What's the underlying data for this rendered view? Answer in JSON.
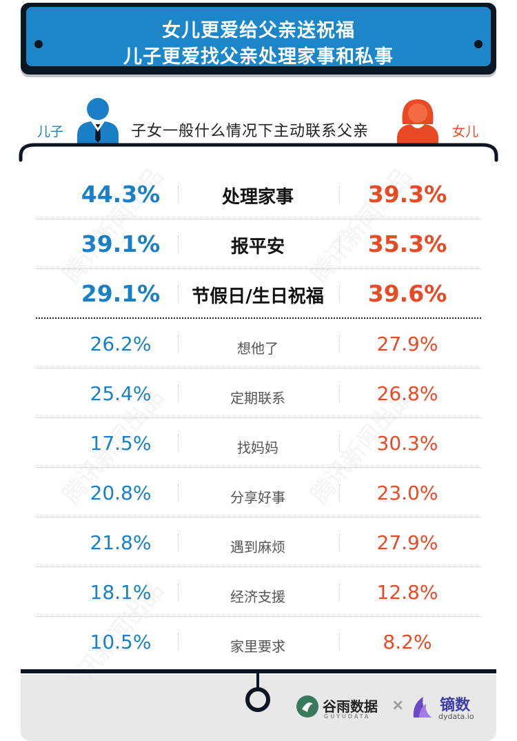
{
  "banner": {
    "line1": "女儿更爱给父亲送祝福",
    "line2": "儿子更爱找父亲处理家事和私事"
  },
  "header": {
    "son_label": "儿子",
    "daughter_label": "女儿",
    "subtitle": "子女一般什么情况下主动联系父亲"
  },
  "watermark": "腾讯新闻出品",
  "colors": {
    "son": "#1a7fc6",
    "daughter": "#e74a25",
    "banner": "#1c86c9",
    "frame": "#0c1622"
  },
  "chart_data": {
    "type": "table",
    "series": [
      {
        "name": "儿子",
        "values": [
          44.3,
          39.1,
          29.1,
          26.2,
          25.4,
          17.5,
          20.8,
          21.8,
          18.1,
          10.5
        ]
      },
      {
        "name": "女儿",
        "values": [
          39.3,
          35.3,
          39.6,
          27.9,
          26.8,
          30.3,
          23.0,
          27.9,
          12.8,
          8.2
        ]
      }
    ],
    "rows": [
      {
        "category": "处理家事",
        "son": "44.3%",
        "daughter": "39.3%",
        "highlight": true
      },
      {
        "category": "报平安",
        "son": "39.1%",
        "daughter": "35.3%",
        "highlight": true
      },
      {
        "category": "节假日/生日祝福",
        "son": "29.1%",
        "daughter": "39.6%",
        "highlight": true
      },
      {
        "category": "想他了",
        "son": "26.2%",
        "daughter": "27.9%",
        "highlight": false
      },
      {
        "category": "定期联系",
        "son": "25.4%",
        "daughter": "26.8%",
        "highlight": false
      },
      {
        "category": "找妈妈",
        "son": "17.5%",
        "daughter": "30.3%",
        "highlight": false
      },
      {
        "category": "分享好事",
        "son": "20.8%",
        "daughter": "23.0%",
        "highlight": false
      },
      {
        "category": "遇到麻烦",
        "son": "21.8%",
        "daughter": "27.9%",
        "highlight": false
      },
      {
        "category": "经济支援",
        "son": "18.1%",
        "daughter": "12.8%",
        "highlight": false
      },
      {
        "category": "家里要求",
        "son": "10.5%",
        "daughter": "8.2%",
        "highlight": false
      }
    ]
  },
  "footer": {
    "logo1_text": "谷雨数据",
    "logo1_sub": "GUYUDATA",
    "times": "×",
    "logo2_text": "镝数",
    "logo2_sub": "dydata.io"
  }
}
